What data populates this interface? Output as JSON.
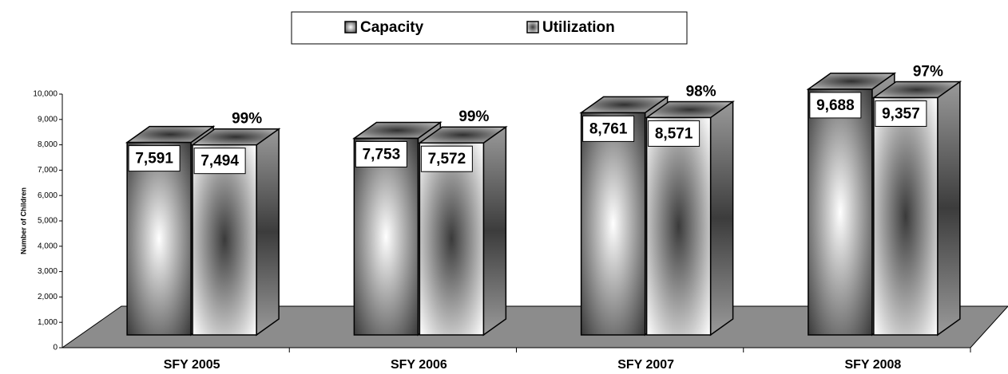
{
  "chart_data": {
    "type": "bar3d",
    "categories": [
      "SFY 2005",
      "SFY 2006",
      "SFY 2007",
      "SFY 2008"
    ],
    "series": [
      {
        "name": "Capacity",
        "color": "#3a3a3a",
        "values": [
          7591,
          7753,
          8761,
          9688
        ],
        "value_labels": [
          "7,591",
          "7,753",
          "8,761",
          "9,688"
        ]
      },
      {
        "name": "Utilization",
        "color": "#3a3a3a",
        "values": [
          7494,
          7572,
          8571,
          9357
        ],
        "value_labels": [
          "7,494",
          "7,572",
          "8,571",
          "9,357"
        ]
      }
    ],
    "annotations": [
      "99%",
      "99%",
      "98%",
      "97%"
    ],
    "y_label": "Number of Children",
    "ylim": [
      0,
      10000
    ],
    "yticks": [
      0,
      {
        "value": 1000,
        "label": "1,000"
      },
      {
        "value": 2000,
        "label": "2,000"
      },
      {
        "value": 3000,
        "label": "3,000"
      },
      {
        "value": 4000,
        "label": "4,000"
      },
      {
        "value": 5000,
        "label": "5,000"
      },
      {
        "value": 6000,
        "label": "6,000"
      },
      {
        "value": 7000,
        "label": "7,000"
      },
      {
        "value": 8000,
        "label": "8,000"
      },
      {
        "value": 9000,
        "label": "9,000"
      },
      {
        "value": 10000,
        "label": "10,000"
      }
    ],
    "legend": "top"
  }
}
